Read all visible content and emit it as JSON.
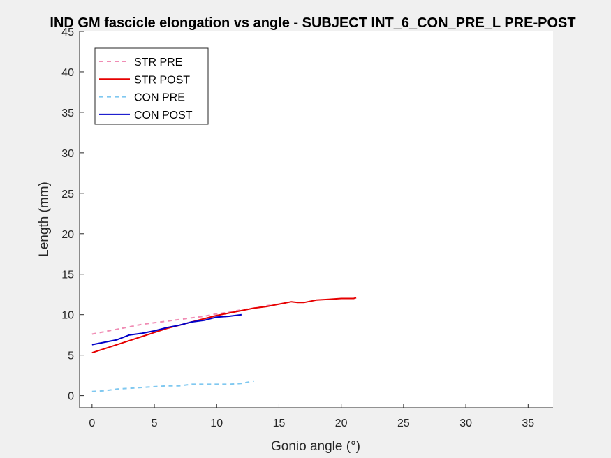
{
  "chart_data": {
    "type": "line",
    "title": "IND GM fascicle elongation vs angle - SUBJECT INT_6_CON_PRE_L PRE-POST",
    "xlabel": "Gonio angle (°)",
    "ylabel": "Length (mm)",
    "xlim": [
      -1,
      37
    ],
    "ylim": [
      -1.5,
      45
    ],
    "xticks": [
      "0",
      "5",
      "10",
      "15",
      "20",
      "25",
      "30",
      "35"
    ],
    "yticks": [
      "0",
      "5",
      "10",
      "15",
      "20",
      "25",
      "30",
      "35",
      "40",
      "45"
    ],
    "grid": false,
    "legend_position": "top-left",
    "series": [
      {
        "name": "STR PRE",
        "color": "#f08cb4",
        "style": "dashed",
        "x": [
          0,
          1,
          2,
          3,
          4,
          5,
          6,
          7,
          8,
          9,
          10,
          11,
          12,
          13,
          14,
          15,
          15.8
        ],
        "y": [
          7.6,
          7.9,
          8.2,
          8.5,
          8.8,
          9.0,
          9.2,
          9.4,
          9.6,
          9.8,
          10.1,
          10.3,
          10.6,
          10.8,
          11.1,
          11.3,
          11.5
        ]
      },
      {
        "name": "STR POST",
        "color": "#e60000",
        "style": "solid",
        "x": [
          0,
          1,
          2,
          3,
          4,
          5,
          6,
          7,
          8,
          9,
          10,
          11,
          12,
          13,
          14,
          15,
          16,
          16.5,
          17,
          18,
          19,
          20,
          21,
          21.2
        ],
        "y": [
          5.3,
          5.8,
          6.3,
          6.8,
          7.3,
          7.8,
          8.3,
          8.7,
          9.1,
          9.5,
          9.9,
          10.2,
          10.5,
          10.8,
          11.0,
          11.3,
          11.6,
          11.5,
          11.5,
          11.8,
          11.9,
          12.0,
          12.0,
          12.1
        ]
      },
      {
        "name": "CON PRE",
        "color": "#7fc8f0",
        "style": "dashed",
        "x": [
          0,
          1,
          2,
          3,
          4,
          5,
          6,
          7,
          8,
          9,
          10,
          11,
          12,
          13
        ],
        "y": [
          0.5,
          0.6,
          0.8,
          0.9,
          1.0,
          1.1,
          1.2,
          1.2,
          1.4,
          1.4,
          1.4,
          1.4,
          1.5,
          1.8
        ]
      },
      {
        "name": "CON POST",
        "color": "#0000c8",
        "style": "solid",
        "x": [
          0,
          1,
          2,
          3,
          4,
          5,
          6,
          7,
          8,
          9,
          10,
          11,
          12
        ],
        "y": [
          6.3,
          6.6,
          6.9,
          7.5,
          7.7,
          8.0,
          8.4,
          8.7,
          9.1,
          9.3,
          9.7,
          9.8,
          10.0
        ]
      }
    ]
  }
}
